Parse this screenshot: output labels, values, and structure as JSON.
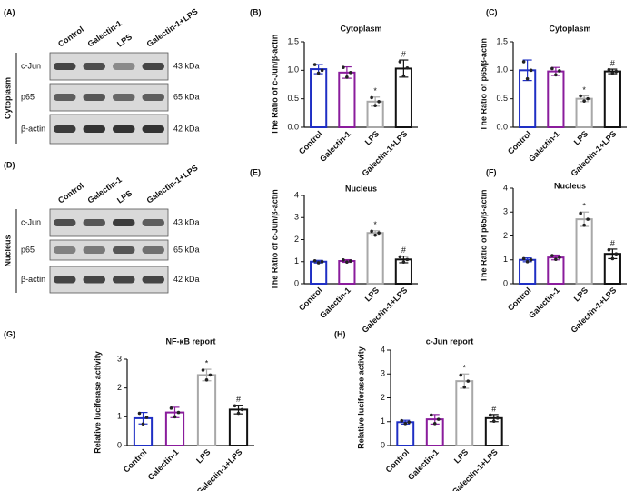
{
  "blots": [
    {
      "panel": "(A)",
      "lanes": [
        "Control",
        "Galectin-1",
        "LPS",
        "Galectin-1+LPS"
      ],
      "compartment": "Cytoplasm",
      "rows": [
        {
          "name": "c-Jun",
          "size": "43 kDa"
        },
        {
          "name": "p65",
          "size": "65 kDa"
        },
        {
          "name": "β-actin",
          "size": "42 kDa"
        }
      ]
    },
    {
      "panel": "(D)",
      "lanes": [
        "Control",
        "Galectin-1",
        "LPS",
        "Galectin-1+LPS"
      ],
      "compartment": "Nucleus",
      "rows": [
        {
          "name": "c-Jun",
          "size": "43 kDa"
        },
        {
          "name": "p65",
          "size": "65 kDa"
        },
        {
          "name": "β-actin",
          "size": "42 kDa"
        }
      ]
    }
  ],
  "chart_data": [
    {
      "type": "bar",
      "panel": "(B)",
      "title": "Cytoplasm",
      "ylabel": "The Ratio of c-Jun/β-actin",
      "categories": [
        "Control",
        "Galectin-1",
        "LPS",
        "Galectin-1+LPS"
      ],
      "colors": [
        "#1f2fc4",
        "#8a1c9c",
        "#a8a8a8",
        "#111111"
      ],
      "values": [
        1.02,
        0.96,
        0.45,
        1.03
      ],
      "errors": [
        0.08,
        0.1,
        0.08,
        0.15
      ],
      "points": [
        [
          1.1,
          0.95,
          1.0
        ],
        [
          1.05,
          0.88,
          0.96
        ],
        [
          0.52,
          0.38,
          0.45
        ],
        [
          1.15,
          0.9,
          1.04
        ]
      ],
      "annotations": [
        {
          "text": "*",
          "category": "LPS"
        },
        {
          "text": "#",
          "category": "Galectin-1+LPS"
        }
      ],
      "ylim": [
        0,
        1.5
      ],
      "yticks": [
        {
          "value": 0,
          "label": "0.0"
        },
        {
          "value": 0.5,
          "label": "0.5"
        },
        {
          "value": 1,
          "label": "1.0"
        },
        {
          "value": 1.5,
          "label": "1.5"
        }
      ]
    },
    {
      "type": "bar",
      "panel": "(C)",
      "title": "Cytoplasm",
      "ylabel": "The Ratio of p65/β-actin",
      "categories": [
        "Control",
        "Galectin-1",
        "LPS",
        "Galectin-1+LPS"
      ],
      "colors": [
        "#1f2fc4",
        "#8a1c9c",
        "#a8a8a8",
        "#111111"
      ],
      "values": [
        1.0,
        0.98,
        0.5,
        0.98
      ],
      "errors": [
        0.18,
        0.07,
        0.05,
        0.04
      ],
      "points": [
        [
          1.15,
          0.85,
          1.0
        ],
        [
          1.03,
          0.92,
          0.99
        ],
        [
          0.55,
          0.46,
          0.5
        ],
        [
          1.01,
          0.95,
          0.98
        ]
      ],
      "annotations": [
        {
          "text": "*",
          "category": "LPS"
        },
        {
          "text": "#",
          "category": "Galectin-1+LPS"
        }
      ],
      "ylim": [
        0,
        1.5
      ],
      "yticks": [
        {
          "value": 0,
          "label": "0.0"
        },
        {
          "value": 0.5,
          "label": "0.5"
        },
        {
          "value": 1,
          "label": "1.0"
        },
        {
          "value": 1.5,
          "label": "1.5"
        }
      ]
    },
    {
      "type": "bar",
      "panel": "(E)",
      "title": "Nucleus",
      "ylabel": "The Ratio of c-Jun/β-actin",
      "categories": [
        "Control",
        "Galectin-1",
        "LPS",
        "Galectin-1+LPS"
      ],
      "colors": [
        "#1f2fc4",
        "#8a1c9c",
        "#a8a8a8",
        "#111111"
      ],
      "values": [
        1.0,
        1.03,
        2.3,
        1.1
      ],
      "errors": [
        0.06,
        0.06,
        0.1,
        0.15
      ],
      "points": [
        [
          1.04,
          0.95,
          1.0
        ],
        [
          1.08,
          0.98,
          1.03
        ],
        [
          2.38,
          2.2,
          2.3
        ],
        [
          1.22,
          0.98,
          1.1
        ]
      ],
      "annotations": [
        {
          "text": "*",
          "category": "LPS"
        },
        {
          "text": "#",
          "category": "Galectin-1+LPS"
        }
      ],
      "ylim": [
        0,
        4
      ],
      "yticks": [
        0,
        1,
        2,
        3,
        4
      ]
    },
    {
      "type": "bar",
      "panel": "(F)",
      "title": "Nucleus",
      "ylabel": "The Ratio of p65/β-actin",
      "categories": [
        "Control",
        "Galectin-1",
        "LPS",
        "Galectin-1+LPS"
      ],
      "colors": [
        "#1f2fc4",
        "#8a1c9c",
        "#a8a8a8",
        "#111111"
      ],
      "values": [
        1.0,
        1.1,
        2.7,
        1.25
      ],
      "errors": [
        0.08,
        0.1,
        0.3,
        0.2
      ],
      "points": [
        [
          1.05,
          0.92,
          1.0
        ],
        [
          1.18,
          1.02,
          1.1
        ],
        [
          2.95,
          2.45,
          2.7
        ],
        [
          1.42,
          1.05,
          1.25
        ]
      ],
      "annotations": [
        {
          "text": "*",
          "category": "LPS"
        },
        {
          "text": "#",
          "category": "Galectin-1+LPS"
        }
      ],
      "ylim": [
        0,
        4
      ],
      "yticks": [
        0,
        1,
        2,
        3,
        4
      ]
    },
    {
      "type": "bar",
      "panel": "(G)",
      "title": "NF-κB report",
      "ylabel": "Relative luciferase activity",
      "categories": [
        "Control",
        "Galectin-1",
        "LPS",
        "Galectin-1+LPS"
      ],
      "colors": [
        "#1f2fc4",
        "#8a1c9c",
        "#a8a8a8",
        "#111111"
      ],
      "values": [
        0.95,
        1.15,
        2.45,
        1.25
      ],
      "errors": [
        0.2,
        0.18,
        0.2,
        0.15
      ],
      "points": [
        [
          1.12,
          0.75,
          0.98
        ],
        [
          1.3,
          1.0,
          1.15
        ],
        [
          2.62,
          2.28,
          2.45
        ],
        [
          1.38,
          1.12,
          1.25
        ]
      ],
      "annotations": [
        {
          "text": "*",
          "category": "LPS"
        },
        {
          "text": "#",
          "category": "Galectin-1+LPS"
        }
      ],
      "ylim": [
        0,
        3
      ],
      "yticks": [
        0,
        1,
        2,
        3
      ]
    },
    {
      "type": "bar",
      "panel": "(H)",
      "title": "c-Jun report",
      "ylabel": "Relative luciferase activity",
      "categories": [
        "Control",
        "Galectin-1",
        "LPS",
        "Galectin-1+LPS"
      ],
      "colors": [
        "#1f2fc4",
        "#8a1c9c",
        "#a8a8a8",
        "#111111"
      ],
      "values": [
        0.98,
        1.1,
        2.7,
        1.15
      ],
      "errors": [
        0.08,
        0.2,
        0.3,
        0.15
      ],
      "points": [
        [
          1.04,
          0.92,
          0.98
        ],
        [
          1.28,
          0.92,
          1.1
        ],
        [
          2.95,
          2.45,
          2.7
        ],
        [
          1.28,
          1.02,
          1.15
        ]
      ],
      "annotations": [
        {
          "text": "*",
          "category": "LPS"
        },
        {
          "text": "#",
          "category": "Galectin-1+LPS"
        }
      ],
      "ylim": [
        0,
        4
      ],
      "yticks": [
        0,
        1,
        2,
        3,
        4
      ]
    }
  ]
}
